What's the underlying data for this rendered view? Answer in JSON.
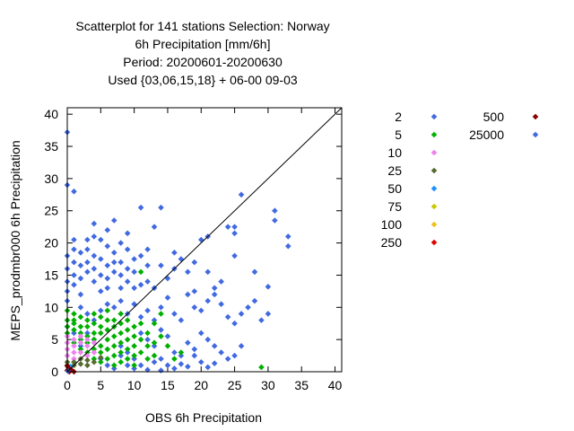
{
  "chart_data": {
    "type": "scatter",
    "title_lines": [
      "Scatterplot for  141 stations Selection: Norway",
      "6h Precipitation [mm/6h]",
      "Period: 20200601-20200630",
      "Used {03,06,15,18} + 06-00 09-03"
    ],
    "xlabel": "OBS 6h Precipitation",
    "ylabel": "MEPS_prodmbr000 6h Precipitation",
    "xlim": [
      0,
      41
    ],
    "ylim": [
      0,
      41
    ],
    "xticks": [
      0,
      5,
      10,
      15,
      20,
      25,
      30,
      35,
      40
    ],
    "yticks": [
      0,
      5,
      10,
      15,
      20,
      25,
      30,
      35,
      40
    ],
    "diagonal": true,
    "grid": false,
    "legend_position": "right",
    "series": [
      {
        "name": "2",
        "color": "#4169e1",
        "points": [
          [
            0,
            37.2
          ],
          [
            0,
            29
          ],
          [
            1,
            28
          ],
          [
            1,
            20.5
          ],
          [
            0,
            18
          ],
          [
            0,
            16
          ],
          [
            0,
            14
          ],
          [
            0,
            12.5
          ],
          [
            0,
            11
          ],
          [
            1,
            19
          ],
          [
            1,
            17
          ],
          [
            1,
            15
          ],
          [
            1,
            13.5
          ],
          [
            2,
            14.5
          ],
          [
            2,
            16.5
          ],
          [
            2,
            18.5
          ],
          [
            2,
            12
          ],
          [
            3,
            15.5
          ],
          [
            3,
            17
          ],
          [
            3,
            19
          ],
          [
            3,
            20.5
          ],
          [
            4,
            16
          ],
          [
            4,
            14
          ],
          [
            4,
            18
          ],
          [
            4,
            21
          ],
          [
            4,
            23
          ],
          [
            5,
            17.5
          ],
          [
            5,
            15
          ],
          [
            5,
            20.5
          ],
          [
            5,
            12.5
          ],
          [
            6,
            16.5
          ],
          [
            6,
            14.5
          ],
          [
            6,
            19.5
          ],
          [
            6,
            22
          ],
          [
            6,
            13
          ],
          [
            7,
            15.5
          ],
          [
            7,
            17
          ],
          [
            7,
            18.5
          ],
          [
            7,
            23.5
          ],
          [
            8,
            17
          ],
          [
            8,
            15
          ],
          [
            8,
            20
          ],
          [
            8,
            13
          ],
          [
            9,
            16
          ],
          [
            9,
            14
          ],
          [
            9,
            19
          ],
          [
            9,
            21.5
          ],
          [
            10,
            15.5
          ],
          [
            10,
            13
          ],
          [
            10,
            17.5
          ],
          [
            11,
            18
          ],
          [
            11,
            13.5
          ],
          [
            11,
            25.5
          ],
          [
            12,
            14
          ],
          [
            12,
            19
          ],
          [
            12,
            16.5
          ],
          [
            13,
            22.5
          ],
          [
            13,
            13
          ],
          [
            14,
            25.5
          ],
          [
            14,
            16.5
          ],
          [
            15,
            14.5
          ],
          [
            16,
            18.5
          ],
          [
            16,
            16
          ],
          [
            17,
            17.5
          ],
          [
            18,
            15.5
          ],
          [
            19,
            12.5
          ],
          [
            19,
            17
          ],
          [
            20,
            20.5
          ],
          [
            21,
            21
          ],
          [
            21,
            15.5
          ],
          [
            22,
            12
          ],
          [
            23,
            14
          ],
          [
            24,
            22.5
          ],
          [
            25,
            22.5
          ],
          [
            25,
            18
          ],
          [
            25,
            21.5
          ],
          [
            26,
            27.5
          ],
          [
            28,
            15.5
          ],
          [
            30,
            13.2
          ],
          [
            31,
            25
          ],
          [
            31,
            23.5
          ],
          [
            33,
            21
          ],
          [
            33,
            19.5
          ],
          [
            2,
            10
          ],
          [
            3,
            9
          ],
          [
            4,
            8
          ],
          [
            5,
            9.5
          ],
          [
            6,
            10.5
          ],
          [
            7,
            10
          ],
          [
            8,
            11
          ],
          [
            9,
            9
          ],
          [
            10,
            10.5
          ],
          [
            11,
            8.5
          ],
          [
            12,
            9.5
          ],
          [
            13,
            8
          ],
          [
            14,
            10
          ],
          [
            15,
            11.5
          ],
          [
            16,
            9
          ],
          [
            17,
            8
          ],
          [
            18,
            12
          ],
          [
            19,
            10
          ],
          [
            20,
            9.5
          ],
          [
            21,
            11
          ],
          [
            22,
            13
          ],
          [
            23,
            10.5
          ],
          [
            24,
            8.5
          ],
          [
            25,
            7.5
          ],
          [
            26,
            9
          ],
          [
            27,
            10
          ],
          [
            28,
            11
          ],
          [
            29,
            8
          ],
          [
            30,
            9
          ],
          [
            11,
            6
          ],
          [
            12,
            5
          ],
          [
            13,
            4
          ],
          [
            14,
            6.5
          ],
          [
            15,
            5.5
          ],
          [
            16,
            3
          ],
          [
            17,
            2.5
          ],
          [
            18,
            4.5
          ],
          [
            19,
            3.5
          ],
          [
            20,
            6
          ],
          [
            21,
            5
          ],
          [
            22,
            4
          ],
          [
            23,
            3
          ],
          [
            24,
            2
          ],
          [
            25,
            2.5
          ],
          [
            26,
            4
          ],
          [
            13,
            1.5
          ],
          [
            14,
            2
          ],
          [
            15,
            1
          ],
          [
            16,
            0.5
          ],
          [
            17,
            1.2
          ],
          [
            18,
            0.8
          ],
          [
            19,
            2.5
          ],
          [
            20,
            1.5
          ],
          [
            21,
            0.7
          ],
          [
            22,
            1.3
          ],
          [
            12,
            0.3
          ],
          [
            14,
            0.2
          ],
          [
            11,
            1
          ],
          [
            10,
            2
          ],
          [
            9,
            3
          ],
          [
            8,
            4
          ],
          [
            3,
            6
          ],
          [
            4,
            5
          ],
          [
            2,
            4
          ],
          [
            1,
            6
          ],
          [
            0,
            7
          ],
          [
            5,
            2
          ],
          [
            6,
            1
          ],
          [
            7,
            0.5
          ],
          [
            8,
            2.5
          ],
          [
            9,
            1
          ],
          [
            10,
            0.5
          ]
        ]
      },
      {
        "name": "5",
        "color": "#00b000",
        "points": [
          [
            0,
            9.5
          ],
          [
            0,
            8
          ],
          [
            0,
            7
          ],
          [
            0,
            6
          ],
          [
            1,
            9
          ],
          [
            1,
            8
          ],
          [
            1,
            7.5
          ],
          [
            1,
            6.5
          ],
          [
            2,
            8.5
          ],
          [
            2,
            7
          ],
          [
            2,
            6
          ],
          [
            2,
            5
          ],
          [
            3,
            8
          ],
          [
            3,
            7
          ],
          [
            3,
            5.5
          ],
          [
            3,
            4.5
          ],
          [
            4,
            9
          ],
          [
            4,
            7.5
          ],
          [
            4,
            6
          ],
          [
            4,
            5
          ],
          [
            4,
            3.5
          ],
          [
            5,
            8.5
          ],
          [
            5,
            7
          ],
          [
            5,
            6
          ],
          [
            5,
            4
          ],
          [
            5,
            3
          ],
          [
            6,
            9.5
          ],
          [
            6,
            8
          ],
          [
            6,
            6.5
          ],
          [
            6,
            5
          ],
          [
            6,
            3.5
          ],
          [
            7,
            8
          ],
          [
            7,
            7
          ],
          [
            7,
            5.5
          ],
          [
            7,
            4
          ],
          [
            7,
            2.5
          ],
          [
            8,
            9
          ],
          [
            8,
            7.5
          ],
          [
            8,
            6
          ],
          [
            8,
            4.5
          ],
          [
            8,
            3
          ],
          [
            9,
            8
          ],
          [
            9,
            6.5
          ],
          [
            9,
            5
          ],
          [
            9,
            3.5
          ],
          [
            10,
            7
          ],
          [
            10,
            5.5
          ],
          [
            10,
            4
          ],
          [
            10,
            2.5
          ],
          [
            11,
            7.5
          ],
          [
            11,
            5
          ],
          [
            11,
            3
          ],
          [
            12,
            6
          ],
          [
            12,
            4
          ],
          [
            12,
            2
          ],
          [
            13,
            4.5
          ],
          [
            13,
            2.5
          ],
          [
            14,
            5.5
          ],
          [
            15,
            4
          ],
          [
            16,
            2
          ],
          [
            17,
            3
          ],
          [
            11,
            15.5
          ],
          [
            13,
            7.5
          ],
          [
            14,
            9
          ],
          [
            29,
            0.7
          ],
          [
            10,
            1
          ],
          [
            9,
            2
          ],
          [
            8,
            1.5
          ],
          [
            7,
            1
          ],
          [
            6,
            2
          ],
          [
            5,
            1.5
          ],
          [
            4,
            2
          ],
          [
            3,
            3
          ],
          [
            2,
            3.5
          ],
          [
            1,
            4.5
          ]
        ]
      },
      {
        "name": "10",
        "color": "#ee82ee",
        "points": [
          [
            0,
            5.5
          ],
          [
            0,
            4.5
          ],
          [
            0,
            3.5
          ],
          [
            1,
            5
          ],
          [
            1,
            4
          ],
          [
            1,
            3
          ],
          [
            2,
            5.5
          ],
          [
            2,
            4.5
          ],
          [
            2,
            3
          ],
          [
            3,
            5
          ],
          [
            3,
            4
          ],
          [
            3,
            2.5
          ],
          [
            4,
            4.5
          ],
          [
            4,
            3
          ],
          [
            0,
            2.5
          ],
          [
            1,
            2
          ]
        ]
      },
      {
        "name": "25",
        "color": "#556b2f",
        "points": [
          [
            0,
            1.5
          ],
          [
            0,
            1
          ],
          [
            1,
            1.5
          ],
          [
            1,
            1
          ],
          [
            2,
            2
          ],
          [
            2,
            1.2
          ],
          [
            3,
            1.8
          ],
          [
            3,
            1
          ],
          [
            4,
            1.5
          ],
          [
            5,
            2.2
          ]
        ]
      },
      {
        "name": "50",
        "color": "#1e90ff",
        "points": [
          [
            0.5,
            0.8
          ]
        ]
      },
      {
        "name": "75",
        "color": "#c8c800",
        "points": [
          [
            0.3,
            0.5
          ]
        ]
      },
      {
        "name": "100",
        "color": "#f0c020",
        "points": [
          [
            0.2,
            0.3
          ]
        ]
      },
      {
        "name": "250",
        "color": "#e00000",
        "points": [
          [
            0.1,
            0.2
          ],
          [
            0.4,
            0.1
          ]
        ]
      },
      {
        "name": "500",
        "color": "#8b0000",
        "points": [
          [
            0,
            0.2
          ],
          [
            0.3,
            0
          ],
          [
            0.6,
            0.3
          ],
          [
            0.2,
            0.6
          ],
          [
            1,
            0
          ],
          [
            0,
            0.9
          ]
        ]
      },
      {
        "name": "25000",
        "color": "#4169e1",
        "points": [
          [
            0.1,
            0.1
          ]
        ]
      }
    ]
  }
}
